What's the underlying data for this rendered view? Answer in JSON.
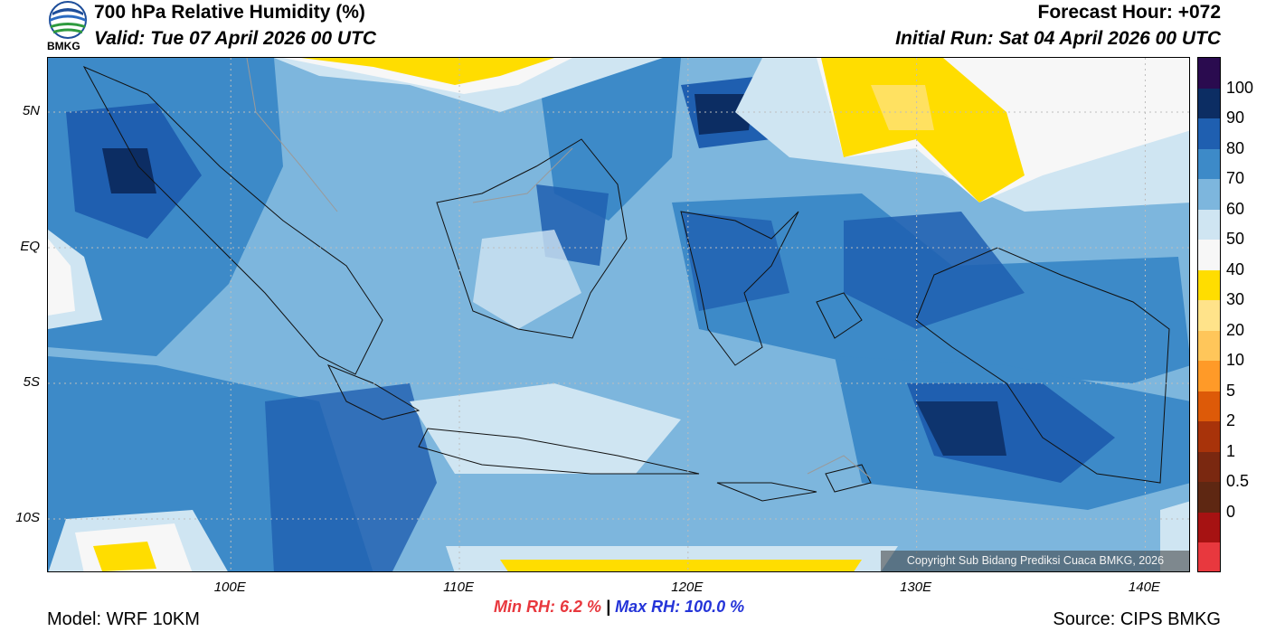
{
  "header": {
    "title": "700 hPa Relative Humidity (%)",
    "valid": "Valid: Tue 07 April 2026 00 UTC",
    "forecast_hour": "Forecast Hour: +072",
    "initial_run": "Initial Run: Sat 04 April 2026 00 UTC"
  },
  "logo": {
    "text": "BMKG",
    "icon": "bmkg-logo"
  },
  "axes": {
    "lat_ticks": [
      {
        "label": "5N",
        "value": 5
      },
      {
        "label": "EQ",
        "value": 0
      },
      {
        "label": "5S",
        "value": -5
      },
      {
        "label": "10S",
        "value": -10
      }
    ],
    "lon_ticks": [
      {
        "label": "100E",
        "value": 100
      },
      {
        "label": "110E",
        "value": 110
      },
      {
        "label": "120E",
        "value": 120
      },
      {
        "label": "130E",
        "value": 130
      },
      {
        "label": "140E",
        "value": 140
      }
    ],
    "lon_range": [
      92,
      142
    ],
    "lat_range": [
      -12,
      7
    ],
    "grid": true
  },
  "colorbar": {
    "labels": [
      "100",
      "90",
      "80",
      "70",
      "60",
      "50",
      "40",
      "30",
      "20",
      "10",
      "5",
      "2",
      "1",
      "0.5",
      "0"
    ],
    "colors": [
      "#2a0b4f",
      "#0c2d63",
      "#1f5fb0",
      "#3d8ac8",
      "#7db6dd",
      "#cfe5f2",
      "#f7f7f7",
      "#ffdd00",
      "#ffe38a",
      "#ffc65a",
      "#ff9a28",
      "#dd5a08",
      "#a8330a",
      "#7a2810",
      "#5e2712",
      "#a61212",
      "#e8383e"
    ]
  },
  "stats": {
    "min_label": "Min RH:",
    "min_value": "6.2 %",
    "separator": "|",
    "max_label": "Max RH:",
    "max_value": "100.0 %"
  },
  "footer": {
    "model": "Model: WRF 10KM",
    "source": "Source: CIPS BMKG",
    "copyright": "Copyright Sub Bidang Prediksi Cuaca BMKG, 2026"
  }
}
